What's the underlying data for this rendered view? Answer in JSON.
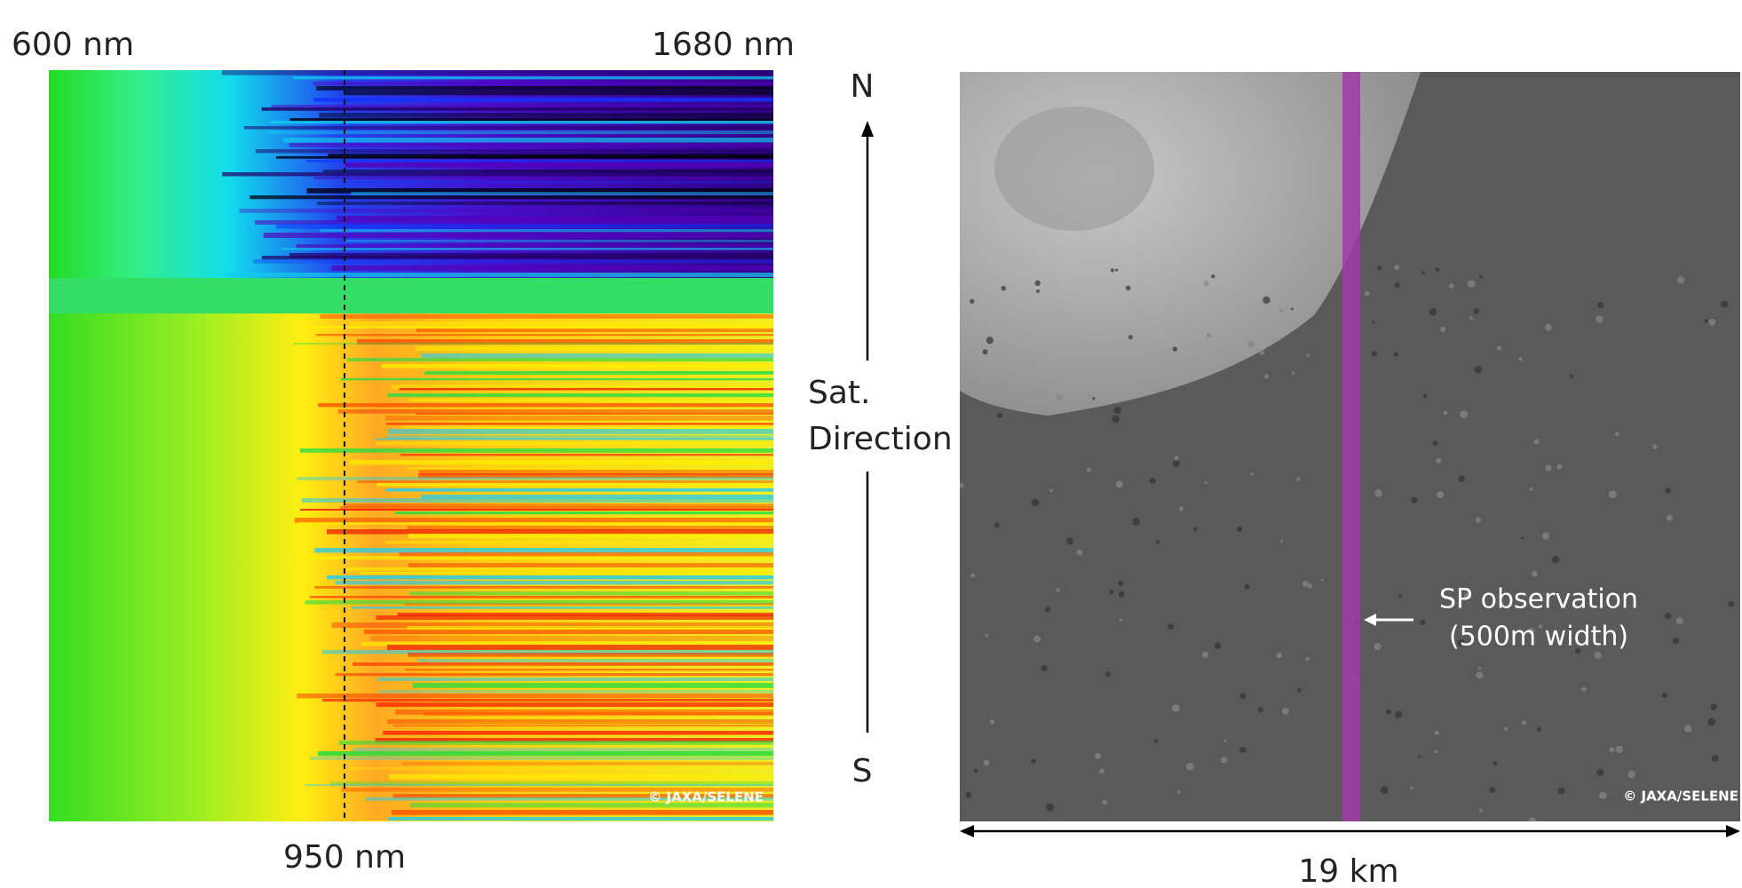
{
  "spectral_panel": {
    "left_label": "600 nm",
    "right_label": "1680 nm",
    "bottom_label": "950 nm",
    "credit": "© JAXA/SELENE"
  },
  "image_panel": {
    "north": "N",
    "direction_lines": [
      "Sat.",
      "Direction"
    ],
    "south": "S",
    "annotation_lines": [
      "SP observation",
      "(500m width)"
    ],
    "scale_label": "19 km",
    "credit": "© JAXA/SELENE"
  }
}
